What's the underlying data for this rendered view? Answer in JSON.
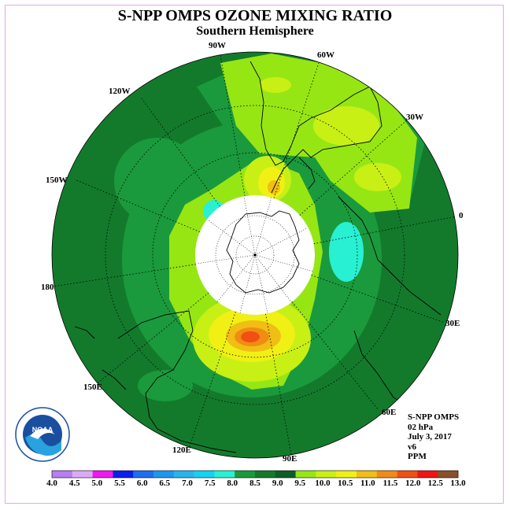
{
  "title": "S-NPP OMPS OZONE MIXING RATIO",
  "subtitle": "Southern Hemisphere",
  "longitude_labels": [
    {
      "text": "90W"
    },
    {
      "text": "60W"
    },
    {
      "text": "120W"
    },
    {
      "text": "30W"
    },
    {
      "text": "150W"
    },
    {
      "text": "0"
    },
    {
      "text": "180"
    },
    {
      "text": "30E"
    },
    {
      "text": "150E"
    },
    {
      "text": "60E"
    },
    {
      "text": "120E"
    },
    {
      "text": "90E"
    }
  ],
  "info": {
    "product": "S-NPP OMPS",
    "pressure": "02 hPa",
    "date": "July 3, 2017",
    "version": "v6",
    "units": "PPM"
  },
  "logo": {
    "text": "NOAA",
    "icon": "noaa-logo-icon"
  },
  "colorbar": {
    "labels": [
      "4.0",
      "4.5",
      "5.0",
      "5.5",
      "6.0",
      "6.5",
      "7.0",
      "7.5",
      "8.0",
      "8.5",
      "9.0",
      "9.5",
      "10.0",
      "10.5",
      "11.0",
      "11.5",
      "12.0",
      "12.5",
      "13.0"
    ],
    "colors": [
      "#b57ff0",
      "#dcaaf5",
      "#f018f0",
      "#0a1ef0",
      "#1e6ef0",
      "#1e96f0",
      "#28b4f0",
      "#14d2f0",
      "#28f0d2",
      "#1a9a3c",
      "#137a2c",
      "#0c5e24",
      "#96e614",
      "#c8f014",
      "#f0f014",
      "#f0be14",
      "#f08c14",
      "#f05014",
      "#f01414",
      "#8c5028"
    ]
  },
  "colors": {
    "background_green": "#137a2c",
    "mid_green": "#1a9a3c",
    "light_green": "#96e614",
    "yellow_green": "#c8f014",
    "yellow": "#f0f014",
    "orange": "#f08c14",
    "red_orange": "#f05014",
    "cyan": "#28f0d2"
  }
}
